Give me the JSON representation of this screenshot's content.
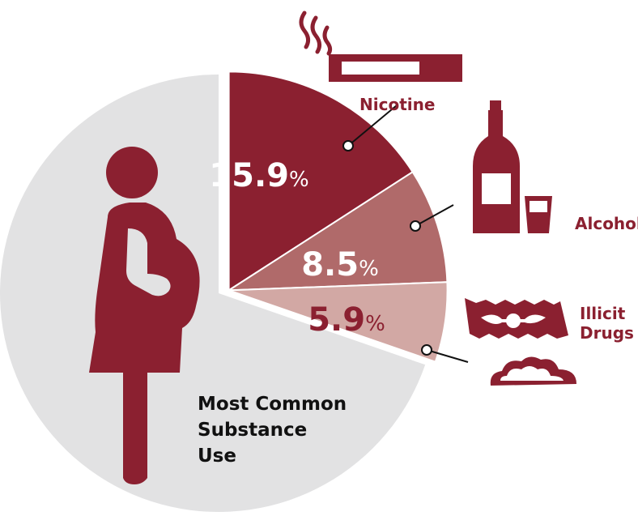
{
  "colors": {
    "accent": "#8B2030",
    "nicotine": "#8B2030",
    "alcohol": "#B06A6A",
    "drugs": "#D2A8A4",
    "remainder": "#E2E2E3",
    "pregnant_figure": "#8B2030"
  },
  "icons": {
    "nicotine": "cigarette-icon",
    "alcohol": "wine-bottle-and-glass-icon",
    "drugs": "razor-blade-and-powder-icon",
    "figure": "pregnant-woman-icon"
  },
  "percent_sign": "%",
  "caption_lines": [
    "Most Common",
    "Substance",
    "Use"
  ],
  "chart_data": {
    "type": "pie",
    "title": "Most Common Substance Use",
    "slices": [
      {
        "label": "Nicotine",
        "value": 15.9,
        "value_label": "15.9",
        "label_lines": [
          "Nicotine"
        ]
      },
      {
        "label": "Alcohol",
        "value": 8.5,
        "value_label": "8.5",
        "label_lines": [
          "Alcohol"
        ]
      },
      {
        "label": "Illicit Drugs",
        "value": 5.9,
        "value_label": "5.9",
        "label_lines": [
          "Illicit",
          "Drugs"
        ]
      }
    ],
    "units": "%",
    "legend": "none"
  }
}
